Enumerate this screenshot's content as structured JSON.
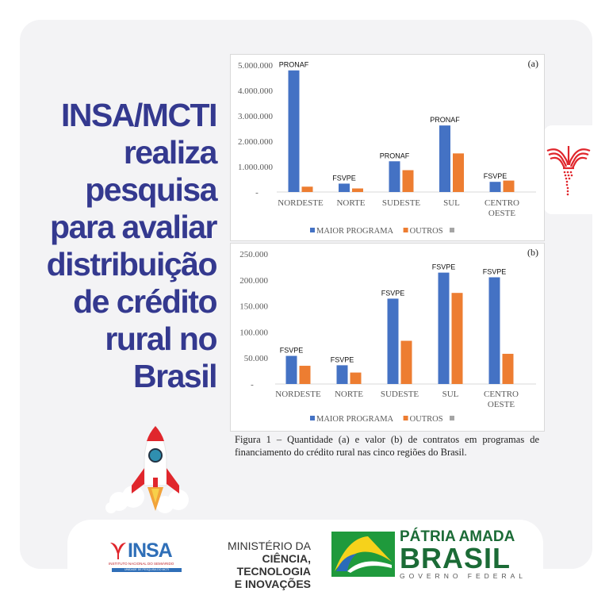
{
  "headline": [
    "INSA/MCTI",
    "realiza",
    "pesquisa",
    "para avaliar",
    "distribuição",
    "de crédito",
    "rural no",
    "Brasil"
  ],
  "caption": "Figura 1 – Quantidade (a) e valor (b) de contratos em programas de financiamento do crédito rural nas cinco regiões do Brasil.",
  "colors": {
    "title": "#34398f",
    "series_blue": "#4472c4",
    "series_orange": "#ed7d31",
    "legend_gray": "#a5a5a5",
    "panel": "#f3f3f5"
  },
  "icons": {
    "side_logo": "insa-bird-logo",
    "rocket": "rocket-illustration"
  },
  "footer": {
    "insa": {
      "word": "INSA",
      "subtitle": "INSTITUTO NACIONAL DO SEMIÁRIDO",
      "unit": "UNIDADE DE PESQUISA DO MCTI"
    },
    "mcti": [
      "MINISTÉRIO DA",
      "CIÊNCIA, TECNOLOGIA",
      "E INOVAÇÕES"
    ],
    "gov": {
      "line1": "PÁTRIA AMADA",
      "line2": "BRASIL",
      "line3": "GOVERNO FEDERAL"
    }
  },
  "chart_data": [
    {
      "type": "bar",
      "panel_label": "(a)",
      "categories": [
        "NORDESTE",
        "NORTE",
        "SUDESTE",
        "SUL",
        "CENTRO OESTE"
      ],
      "ylim": [
        0,
        5000000
      ],
      "yticks": [
        "-",
        "1.000.000",
        "2.000.000",
        "3.000.000",
        "4.000.000",
        "5.000.000"
      ],
      "grid": false,
      "legend": "bottom",
      "legend_entries": [
        "MAIOR PROGRAMA",
        "OUTROS",
        ""
      ],
      "series": [
        {
          "name": "MAIOR PROGRAMA",
          "values": [
            4790000,
            330000,
            1210000,
            2620000,
            400000
          ],
          "labels": [
            "PRONAF",
            "FSVPE",
            "PRONAF",
            "PRONAF",
            "FSVPE"
          ]
        },
        {
          "name": "OUTROS",
          "values": [
            210000,
            140000,
            860000,
            1520000,
            450000
          ]
        }
      ]
    },
    {
      "type": "bar",
      "panel_label": "(b)",
      "categories": [
        "NORDESTE",
        "NORTE",
        "SUDESTE",
        "SUL",
        "CENTRO OESTE"
      ],
      "ylim": [
        0,
        250000
      ],
      "yticks": [
        "-",
        "50.000",
        "100.000",
        "150.000",
        "200.000",
        "250.000"
      ],
      "grid": false,
      "legend": "bottom",
      "legend_entries": [
        "MAIOR PROGRAMA",
        "OUTROS",
        ""
      ],
      "series": [
        {
          "name": "MAIOR PROGRAMA",
          "values": [
            54000,
            36000,
            164000,
            214000,
            205000
          ],
          "labels": [
            "FSVPE",
            "FSVPE",
            "FSVPE",
            "FSVPE",
            "FSVPE"
          ]
        },
        {
          "name": "OUTROS",
          "values": [
            35000,
            22000,
            83000,
            175000,
            58000
          ]
        }
      ]
    }
  ]
}
